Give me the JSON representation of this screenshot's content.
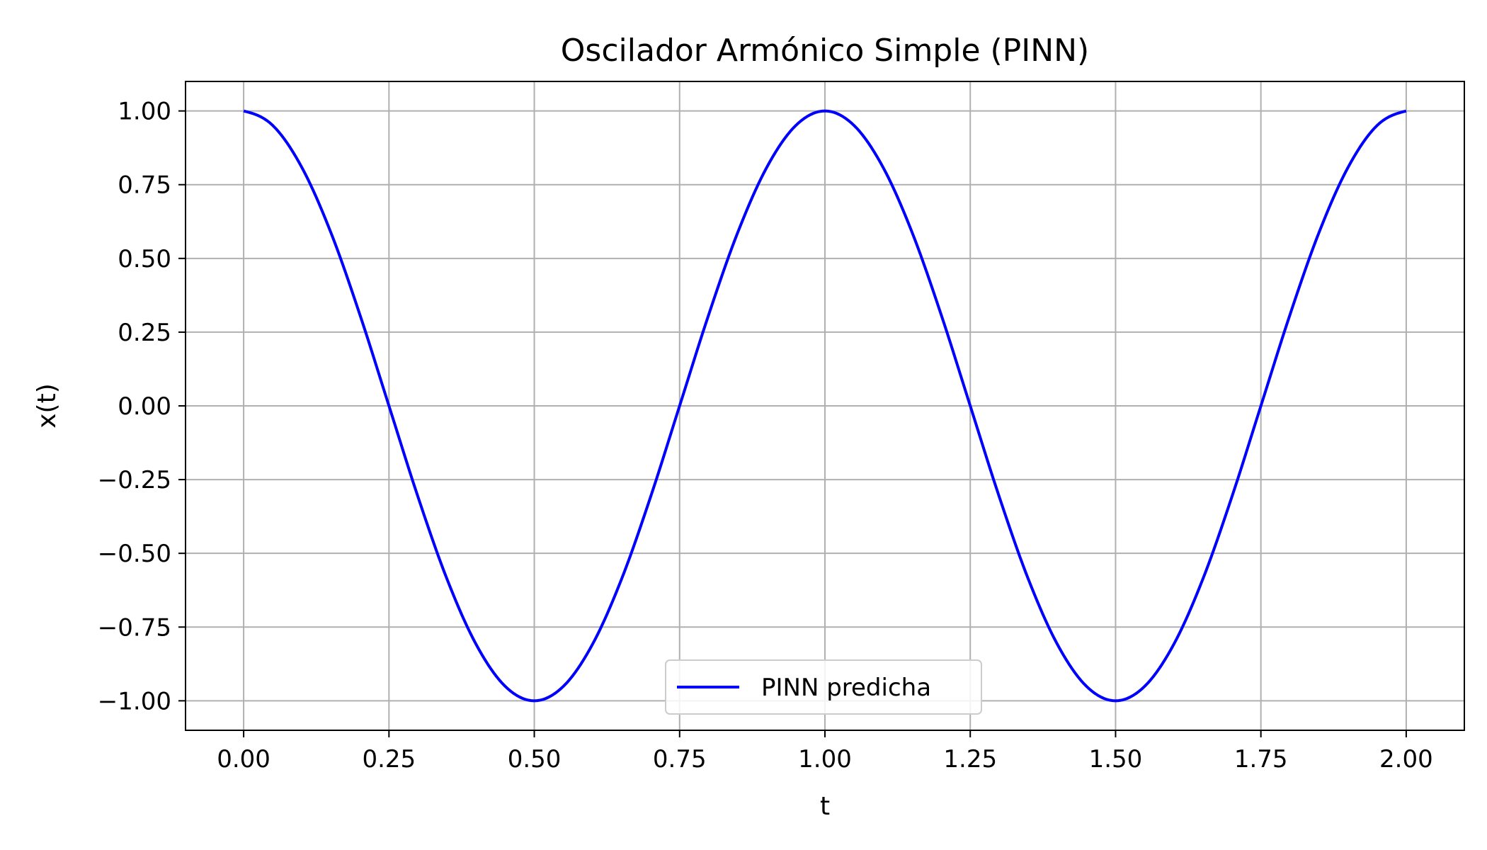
{
  "chart_data": {
    "type": "line",
    "title": "Oscilador Armónico Simple (PINN)",
    "xlabel": "t",
    "ylabel": "x(t)",
    "xlim": [
      -0.1,
      2.1
    ],
    "ylim": [
      -1.1,
      1.1
    ],
    "xticks": [
      "0.00",
      "0.25",
      "0.50",
      "0.75",
      "1.00",
      "1.25",
      "1.50",
      "1.75",
      "2.00"
    ],
    "yticks": [
      "1.00",
      "0.75",
      "0.50",
      "0.25",
      "0.00",
      "−0.25",
      "−0.50",
      "−0.75",
      "−1.00"
    ],
    "grid": true,
    "legend_position": "lower center",
    "series": [
      {
        "name": "PINN predicha",
        "color": "#0000ff",
        "x": [
          0.0,
          0.05,
          0.1,
          0.15,
          0.2,
          0.25,
          0.3,
          0.35,
          0.4,
          0.45,
          0.5,
          0.55,
          0.6,
          0.65,
          0.7,
          0.75,
          0.8,
          0.85,
          0.9,
          0.95,
          1.0,
          1.05,
          1.1,
          1.15,
          1.2,
          1.25,
          1.3,
          1.35,
          1.4,
          1.45,
          1.5,
          1.55,
          1.6,
          1.65,
          1.7,
          1.75,
          1.8,
          1.85,
          1.9,
          1.95,
          2.0
        ],
        "y": [
          1.0,
          0.951,
          0.809,
          0.588,
          0.309,
          0.0,
          -0.309,
          -0.588,
          -0.809,
          -0.951,
          -1.0,
          -0.951,
          -0.809,
          -0.588,
          -0.309,
          0.0,
          0.309,
          0.588,
          0.809,
          0.951,
          1.0,
          0.951,
          0.809,
          0.588,
          0.309,
          0.0,
          -0.309,
          -0.588,
          -0.809,
          -0.951,
          -1.0,
          -0.951,
          -0.809,
          -0.588,
          -0.309,
          0.0,
          0.309,
          0.588,
          0.809,
          0.951,
          1.0
        ]
      }
    ]
  }
}
